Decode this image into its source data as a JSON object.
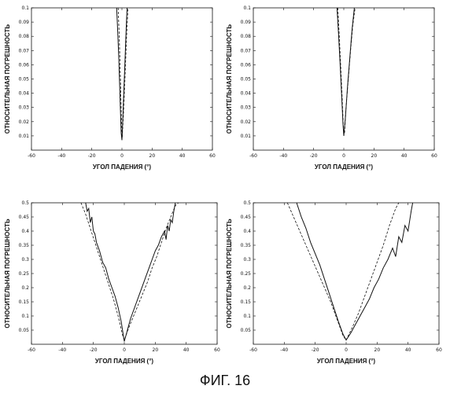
{
  "figure": {
    "caption": "ФИГ. 16"
  },
  "chart_data": [
    {
      "type": "line",
      "xlabel": "УГОЛ ПАДЕНИЯ (°)",
      "ylabel": "ОТНОСИТЕЛЬНАЯ ПОГРЕШНОСТЬ",
      "xlim": [
        -60,
        60
      ],
      "ylim": [
        0,
        0.1
      ],
      "xticks": [
        "-60",
        "-40",
        "-20",
        "0",
        "20",
        "40",
        "60"
      ],
      "yticks": [
        "0.01",
        "0.02",
        "0.03",
        "0.04",
        "0.05",
        "0.06",
        "0.07",
        "0.08",
        "0.09",
        "0.1"
      ],
      "series": [
        {
          "style": "solid",
          "x": [
            -3.5,
            -3.0,
            -2.2,
            -1.5,
            -1.0,
            -0.5,
            0.0,
            0.5,
            1.2,
            2.0,
            2.8,
            3.4
          ],
          "y": [
            0.1,
            0.088,
            0.068,
            0.045,
            0.028,
            0.012,
            0.007,
            0.02,
            0.04,
            0.062,
            0.085,
            0.1
          ]
        },
        {
          "style": "dashed",
          "x": [
            -2.5,
            -1.8,
            -1.0,
            -0.3,
            0.2,
            1.0,
            2.0,
            3.0,
            4.0
          ],
          "y": [
            0.1,
            0.08,
            0.05,
            0.02,
            0.009,
            0.025,
            0.05,
            0.078,
            0.1
          ]
        }
      ]
    },
    {
      "type": "line",
      "xlabel": "УГОЛ ПАДЕНИЯ (°)",
      "ylabel": "ОТНОСИТЕЛЬНАЯ ПОГРЕШНОСТЬ",
      "xlim": [
        -60,
        60
      ],
      "ylim": [
        0,
        0.1
      ],
      "xticks": [
        "-60",
        "-40",
        "-20",
        "0",
        "20",
        "40",
        "60"
      ],
      "yticks": [
        "0.01",
        "0.02",
        "0.03",
        "0.04",
        "0.05",
        "0.06",
        "0.07",
        "0.08",
        "0.09",
        "0.1"
      ],
      "series": [
        {
          "style": "solid",
          "x": [
            -4.5,
            -3.5,
            -2.5,
            -1.5,
            -0.5,
            0.0,
            1.0,
            2.5,
            4.0,
            5.5,
            7.0
          ],
          "y": [
            0.1,
            0.082,
            0.062,
            0.04,
            0.018,
            0.01,
            0.022,
            0.045,
            0.065,
            0.085,
            0.1
          ]
        },
        {
          "style": "dashed",
          "x": [
            -4.0,
            -3.0,
            -2.0,
            -1.0,
            -0.2,
            0.5,
            1.5,
            3.0,
            4.5,
            6.0,
            7.5
          ],
          "y": [
            0.1,
            0.08,
            0.058,
            0.035,
            0.014,
            0.012,
            0.03,
            0.05,
            0.07,
            0.088,
            0.1
          ]
        }
      ]
    },
    {
      "type": "line",
      "xlabel": "УГОЛ ПАДЕНИЯ (°)",
      "ylabel": "ОТНОСИТЕЛЬНАЯ ПОГРЕШНОСТЬ",
      "xlim": [
        -60,
        60
      ],
      "ylim": [
        0,
        0.5
      ],
      "xticks": [
        "-60",
        "-40",
        "-20",
        "0",
        "20",
        "40",
        "60"
      ],
      "yticks": [
        "0.05",
        "0.1",
        "0.15",
        "0.2",
        "0.25",
        "0.3",
        "0.35",
        "0.4",
        "0.45",
        "0.5"
      ],
      "series": [
        {
          "style": "solid",
          "x": [
            -25,
            -24,
            -23,
            -22,
            -21,
            -20,
            -19,
            -18,
            -16,
            -14,
            -12,
            -10,
            -8,
            -6,
            -4,
            -2,
            0,
            2,
            4,
            6,
            8,
            10,
            12,
            14,
            16,
            18,
            20,
            22,
            24,
            26,
            27,
            28,
            29,
            30,
            31,
            32,
            33
          ],
          "y": [
            0.5,
            0.47,
            0.48,
            0.43,
            0.45,
            0.4,
            0.39,
            0.36,
            0.33,
            0.29,
            0.27,
            0.23,
            0.2,
            0.17,
            0.13,
            0.08,
            0.01,
            0.05,
            0.09,
            0.12,
            0.15,
            0.18,
            0.21,
            0.24,
            0.27,
            0.3,
            0.33,
            0.35,
            0.38,
            0.4,
            0.37,
            0.42,
            0.4,
            0.44,
            0.43,
            0.47,
            0.5
          ]
        },
        {
          "style": "dashed",
          "x": [
            -28,
            -25,
            -22,
            -19,
            -16,
            -13,
            -10,
            -7,
            -4,
            -1,
            0,
            3,
            6,
            9,
            12,
            15,
            18,
            21,
            24,
            27,
            30,
            33,
            35
          ],
          "y": [
            0.5,
            0.46,
            0.41,
            0.36,
            0.31,
            0.26,
            0.21,
            0.16,
            0.1,
            0.03,
            0.015,
            0.06,
            0.1,
            0.14,
            0.18,
            0.22,
            0.27,
            0.31,
            0.36,
            0.41,
            0.45,
            0.49,
            0.5
          ]
        }
      ]
    },
    {
      "type": "line",
      "xlabel": "УГОЛ ПАДЕНИЯ (°)",
      "ylabel": "ОТНОСИТЕЛЬНАЯ ПОГРЕШНОСТЬ",
      "xlim": [
        -60,
        60
      ],
      "ylim": [
        0,
        0.5
      ],
      "xticks": [
        "-60",
        "-40",
        "-20",
        "0",
        "20",
        "40",
        "60"
      ],
      "yticks": [
        "0.05",
        "0.1",
        "0.15",
        "0.2",
        "0.25",
        "0.3",
        "0.35",
        "0.4",
        "0.45",
        "0.5"
      ],
      "series": [
        {
          "style": "solid",
          "x": [
            -32,
            -29,
            -26,
            -23,
            -20,
            -17,
            -14,
            -11,
            -8,
            -5,
            -2,
            0,
            3,
            6,
            9,
            12,
            15,
            18,
            21,
            24,
            27,
            30,
            32,
            34,
            36,
            38,
            40,
            42,
            43
          ],
          "y": [
            0.5,
            0.45,
            0.41,
            0.36,
            0.32,
            0.28,
            0.23,
            0.18,
            0.13,
            0.08,
            0.035,
            0.015,
            0.04,
            0.07,
            0.1,
            0.13,
            0.16,
            0.2,
            0.23,
            0.27,
            0.3,
            0.34,
            0.31,
            0.38,
            0.36,
            0.42,
            0.4,
            0.47,
            0.5
          ]
        },
        {
          "style": "dashed",
          "x": [
            -38,
            -34,
            -30,
            -26,
            -22,
            -18,
            -14,
            -10,
            -6,
            -2,
            0,
            4,
            8,
            12,
            16,
            20,
            24,
            28,
            32,
            34
          ],
          "y": [
            0.5,
            0.45,
            0.4,
            0.35,
            0.3,
            0.25,
            0.2,
            0.15,
            0.09,
            0.03,
            0.015,
            0.06,
            0.11,
            0.17,
            0.23,
            0.29,
            0.35,
            0.42,
            0.48,
            0.5
          ]
        }
      ]
    }
  ]
}
